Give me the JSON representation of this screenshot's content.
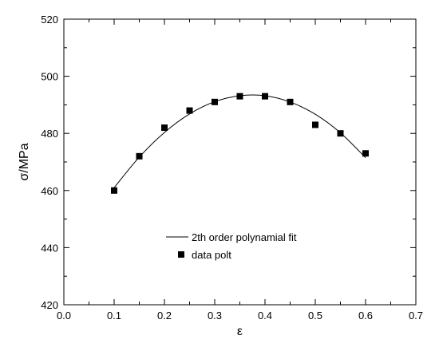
{
  "chart_data": {
    "type": "scatter",
    "title": "",
    "xlabel": "ε",
    "ylabel": "σ/MPa",
    "xlim": [
      0.0,
      0.7
    ],
    "ylim": [
      420,
      520
    ],
    "x_ticks": [
      "0.0",
      "0.1",
      "0.2",
      "0.3",
      "0.4",
      "0.5",
      "0.6",
      "0.7"
    ],
    "y_ticks": [
      "420",
      "440",
      "460",
      "480",
      "500",
      "520"
    ],
    "grid": false,
    "legend_position": "lower-center",
    "series": [
      {
        "name": "2th order polynamial fit",
        "kind": "line",
        "color": "#000000",
        "x": [
          0.1,
          0.15,
          0.2,
          0.25,
          0.3,
          0.35,
          0.4,
          0.45,
          0.5,
          0.55,
          0.6
        ],
        "values": [
          461.0,
          471.7,
          480.3,
          486.8,
          491.1,
          493.2,
          493.2,
          491.0,
          486.7,
          480.2,
          471.5
        ]
      },
      {
        "name": "data polt",
        "kind": "scatter",
        "marker": "square",
        "color": "#000000",
        "x": [
          0.1,
          0.15,
          0.2,
          0.25,
          0.3,
          0.35,
          0.4,
          0.45,
          0.5,
          0.55,
          0.6
        ],
        "values": [
          460,
          472,
          482,
          488,
          491,
          493,
          493,
          491,
          483,
          480,
          473
        ]
      }
    ]
  }
}
